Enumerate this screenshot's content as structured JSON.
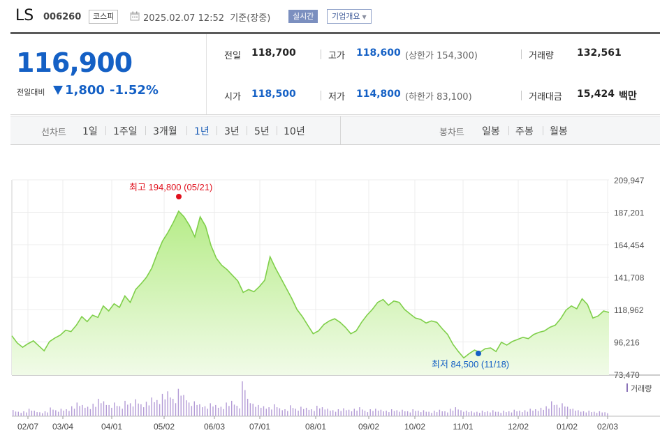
{
  "header": {
    "name": "LS",
    "code": "006260",
    "market": "코스피",
    "time": "2025.02.07 12:52  기준(장중)",
    "realtime_button": "실시간",
    "company_button": "기업개요"
  },
  "price": {
    "current": "116,900",
    "change_label": "전일대비",
    "change": "1,800",
    "change_pct": "-1.52%",
    "direction": "down"
  },
  "stats": {
    "prev_close_label": "전일",
    "prev_close": "118,700",
    "high_label": "고가",
    "high": "118,600",
    "upper_limit": "(상한가 154,300)",
    "volume_label": "거래량",
    "volume": "132,561",
    "open_label": "시가",
    "open": "118,500",
    "low_label": "저가",
    "low": "114,800",
    "lower_limit": "(하한가 83,100)",
    "value_label": "거래대금",
    "value": "15,424",
    "value_unit": "백만"
  },
  "period_bar": {
    "line_chart_label": "선차트",
    "line_periods": [
      "1일",
      "1주일",
      "3개월",
      "1년",
      "3년",
      "5년",
      "10년"
    ],
    "active_period": "1년",
    "candle_chart_label": "봉차트",
    "candle_periods": [
      "일봉",
      "주봉",
      "월봉"
    ]
  },
  "colors": {
    "down": "#1460c5",
    "up": "#e0101d",
    "line": "#7fcf4a",
    "fill": "#c9f0a6"
  },
  "chart_data": {
    "type": "area",
    "y_ticks": [
      "209,947",
      "187,201",
      "164,454",
      "141,708",
      "118,962",
      "96,216",
      "73,470"
    ],
    "ylim": [
      73470,
      209947
    ],
    "x_ticks": [
      "02/07",
      "03/04",
      "04/01",
      "05/02",
      "06/03",
      "07/01",
      "08/01",
      "09/02",
      "10/02",
      "11/01",
      "12/02",
      "01/02",
      "02/03"
    ],
    "high_annotation": "최고 194,800 (05/21)",
    "low_annotation": "최저 84,500 (11/18)",
    "volume_legend": "거래량",
    "values": [
      100500,
      95500,
      92500,
      95000,
      97000,
      93500,
      90000,
      96500,
      99000,
      101000,
      104500,
      103500,
      108000,
      114000,
      110500,
      115000,
      113500,
      121500,
      118000,
      123000,
      120500,
      128500,
      124000,
      133000,
      137000,
      141500,
      148000,
      158000,
      167000,
      173000,
      180000,
      188000,
      184000,
      178000,
      170000,
      184000,
      177500,
      164000,
      155000,
      150000,
      147000,
      143000,
      139000,
      131000,
      133000,
      131500,
      135000,
      139500,
      156000,
      148000,
      141000,
      134000,
      127000,
      119000,
      114000,
      108000,
      102000,
      104000,
      108500,
      111000,
      112500,
      110000,
      106500,
      102000,
      104000,
      110000,
      115000,
      119000,
      124000,
      126000,
      122000,
      125000,
      124000,
      119000,
      116000,
      113000,
      112000,
      109500,
      111000,
      110000,
      105500,
      101500,
      94500,
      89500,
      85000,
      88000,
      90500,
      89000,
      91500,
      92000,
      89500,
      96000,
      94000,
      96500,
      98000,
      99500,
      98500,
      101500,
      103000,
      104000,
      106500,
      108000,
      112500,
      118500,
      121500,
      119500,
      126500,
      122500,
      113000,
      114500,
      118000,
      116900
    ],
    "volumes": [
      25,
      18,
      20,
      30,
      22,
      16,
      20,
      35,
      24,
      30,
      28,
      40,
      55,
      45,
      38,
      50,
      70,
      60,
      45,
      55,
      40,
      62,
      52,
      68,
      48,
      58,
      75,
      65,
      90,
      100,
      70,
      110,
      85,
      55,
      60,
      48,
      40,
      52,
      45,
      38,
      55,
      62,
      42,
      140,
      70,
      50,
      45,
      40,
      36,
      48,
      32,
      28,
      44,
      30,
      38,
      34,
      28,
      42,
      36,
      30,
      24,
      28,
      32,
      26,
      30,
      36,
      22,
      28,
      30,
      26,
      22,
      28,
      24,
      26,
      20,
      28,
      22,
      24,
      18,
      22,
      26,
      20,
      30,
      36,
      24,
      22,
      20,
      18,
      22,
      20,
      24,
      18,
      22,
      20,
      26,
      22,
      24,
      30,
      28,
      34,
      40,
      60,
      46,
      52,
      38,
      30,
      24,
      20,
      22,
      18,
      20,
      16
    ]
  }
}
